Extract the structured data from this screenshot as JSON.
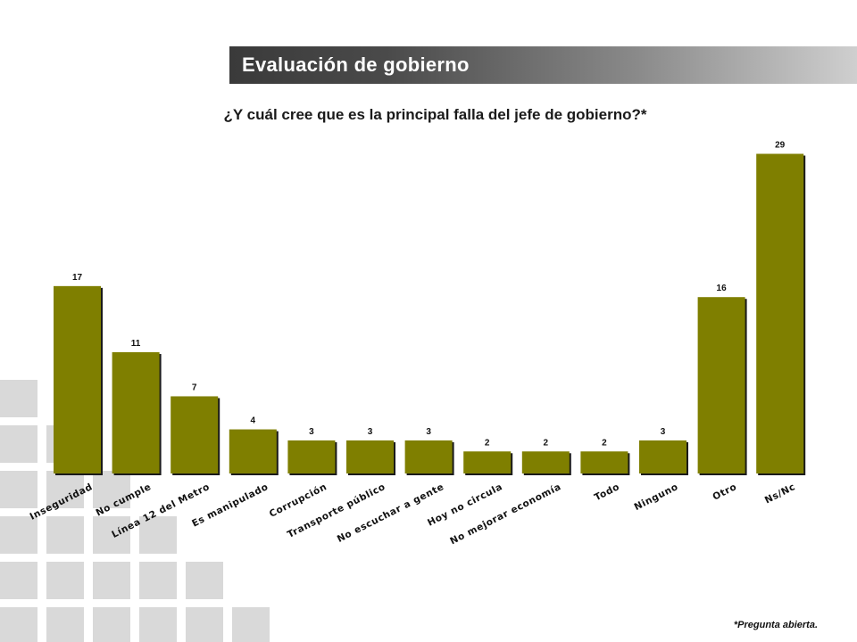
{
  "header": {
    "title": "Evaluación de gobierno"
  },
  "question": "¿Y cuál cree que es la principal falla del jefe de gobierno?*",
  "footnote": "*Pregunta abierta.",
  "colors": {
    "bar": "#7f7f00",
    "bar_shadow": "#1a1a1a",
    "deco_square": "#d9d9d9"
  },
  "chart_data": {
    "type": "bar",
    "categories": [
      "Inseguridad",
      "No cumple",
      "Línea 12 del Metro",
      "Es manipulado",
      "Corrupción",
      "Transporte público",
      "No escuchar a gente",
      "Hoy no circula",
      "No mejorar economía",
      "Todo",
      "Ninguno",
      "Otro",
      "Ns/Nc"
    ],
    "values": [
      17,
      11,
      7,
      4,
      3,
      3,
      3,
      2,
      2,
      2,
      3,
      16,
      29
    ],
    "data_labels": [
      "17",
      "11",
      "7",
      "4",
      "3",
      "3",
      "3",
      "2",
      "2",
      "2",
      "3",
      "16",
      "29"
    ],
    "grid": false,
    "legend": "none"
  }
}
